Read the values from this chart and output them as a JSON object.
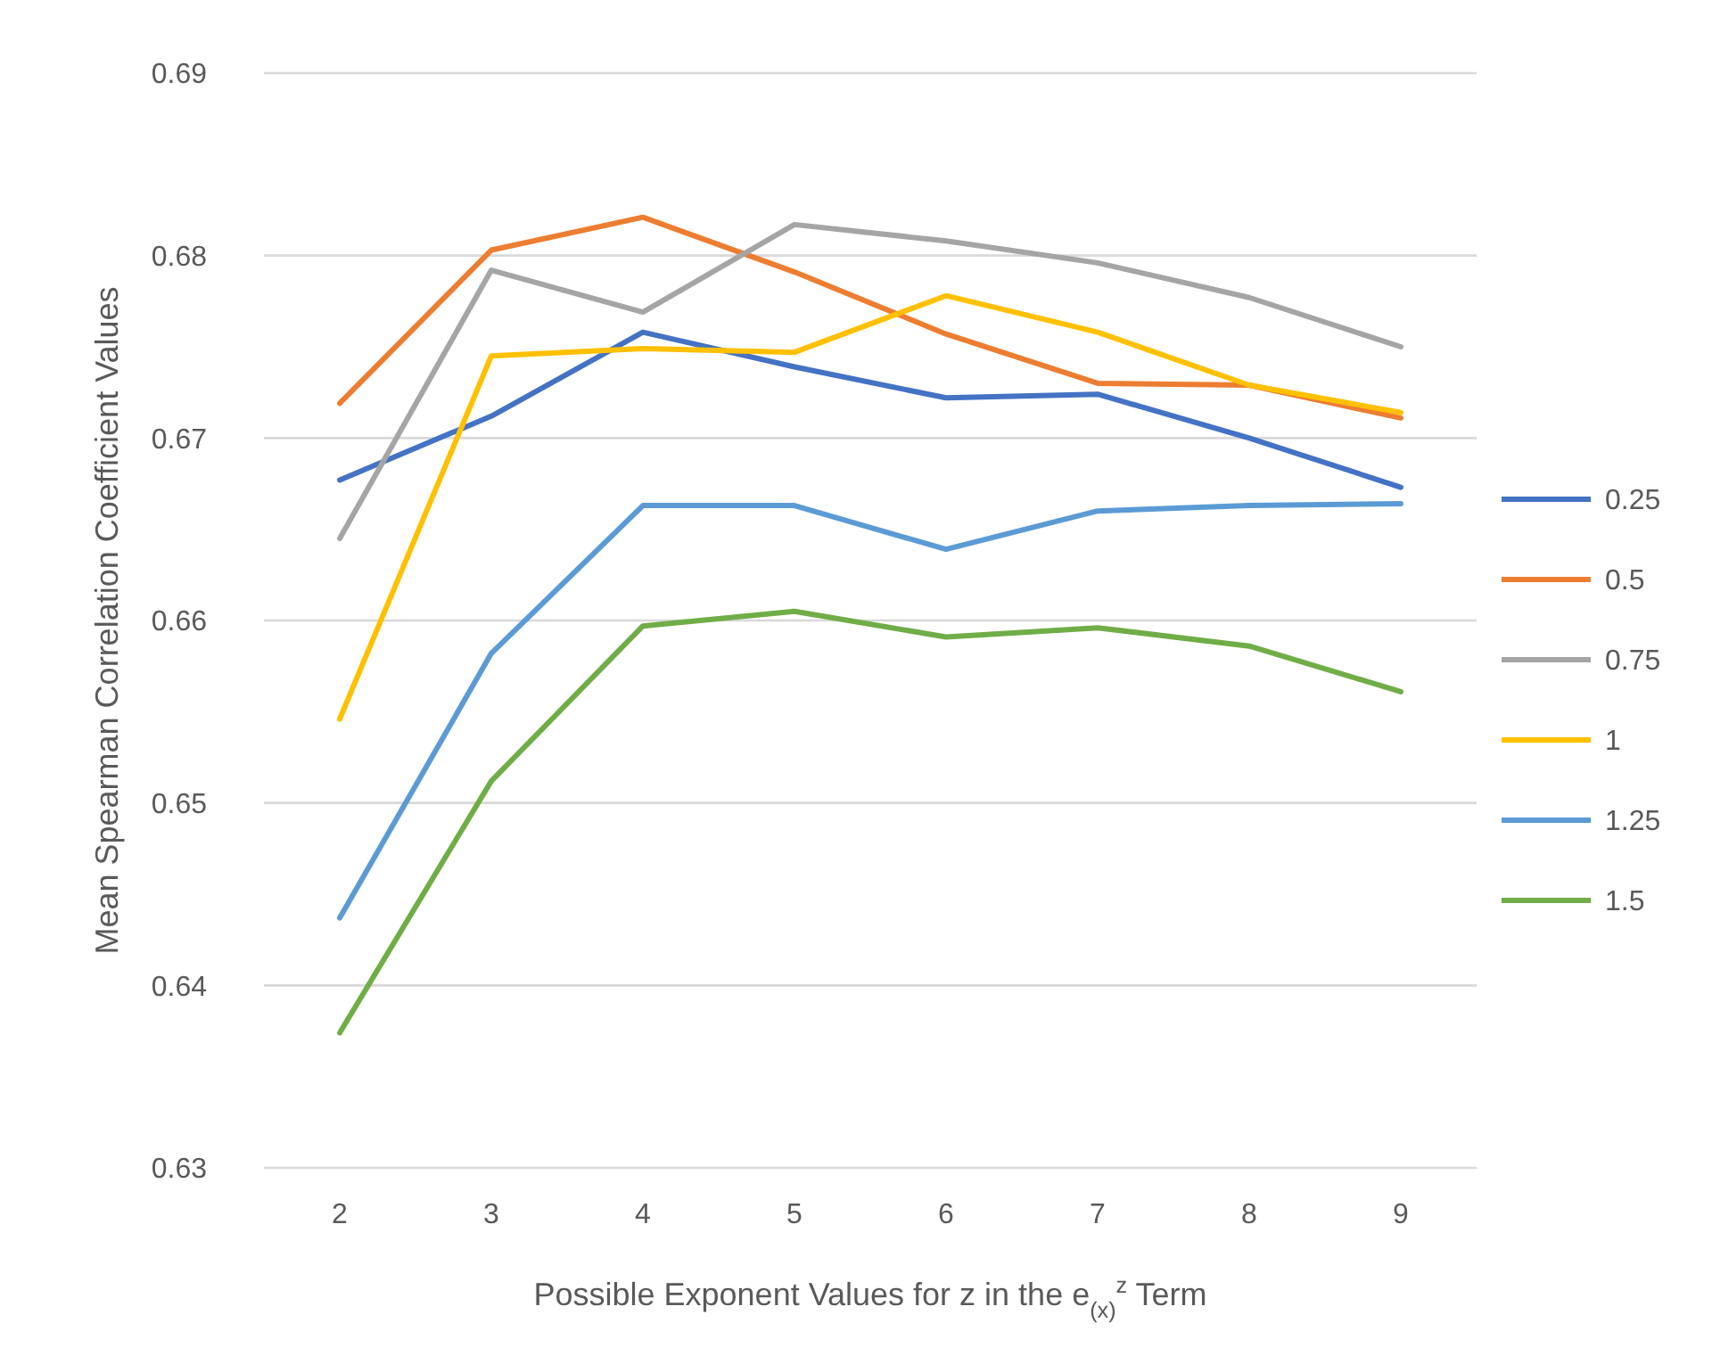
{
  "chart_data": {
    "type": "line",
    "xlabel": "Possible Exponent Values for z in the e$_{(x)}$$^{z}$ Term",
    "ylabel": "Mean Spearman Correlation Coefficient Values",
    "x": [
      2,
      3,
      4,
      5,
      6,
      7,
      8,
      9
    ],
    "xlim": [
      1.5,
      9.5
    ],
    "xticks": [
      2,
      3,
      4,
      5,
      6,
      7,
      8,
      9
    ],
    "ylim": [
      0.63,
      0.69
    ],
    "yticks": [
      {
        "value": 0.63,
        "label": "0.63"
      },
      {
        "value": 0.64,
        "label": "0.64"
      },
      {
        "value": 0.65,
        "label": "0.65"
      },
      {
        "value": 0.66,
        "label": "0.66"
      },
      {
        "value": 0.67,
        "label": "0.67"
      },
      {
        "value": 0.68,
        "label": "0.68"
      },
      {
        "value": 0.69,
        "label": "0.69"
      }
    ],
    "grid": "y",
    "legend": "right",
    "marker": "none",
    "line_style": "solid",
    "series": [
      {
        "name": "0.25",
        "color": "#4472c4",
        "values": [
          0.6677,
          0.6712,
          0.6758,
          0.6739,
          0.6722,
          0.6724,
          0.67,
          0.6673
        ]
      },
      {
        "name": "0.5",
        "color": "#ed7d31",
        "values": [
          0.6719,
          0.6803,
          0.6821,
          0.6791,
          0.6757,
          0.673,
          0.6729,
          0.6711
        ]
      },
      {
        "name": "0.75",
        "color": "#a5a5a5",
        "values": [
          0.6645,
          0.6792,
          0.6769,
          0.6817,
          0.6808,
          0.6796,
          0.6777,
          0.675
        ]
      },
      {
        "name": "1",
        "color": "#ffc000",
        "values": [
          0.6546,
          0.6745,
          0.6749,
          0.6747,
          0.6778,
          0.6758,
          0.6729,
          0.6714
        ]
      },
      {
        "name": "1.25",
        "color": "#5b9bd5",
        "values": [
          0.6437,
          0.6582,
          0.6663,
          0.6663,
          0.6639,
          0.666,
          0.6663,
          0.6664
        ]
      },
      {
        "name": "1.5",
        "color": "#70ad47",
        "values": [
          0.6374,
          0.6512,
          0.6597,
          0.6605,
          0.6591,
          0.6596,
          0.6586,
          0.6561
        ]
      }
    ]
  }
}
